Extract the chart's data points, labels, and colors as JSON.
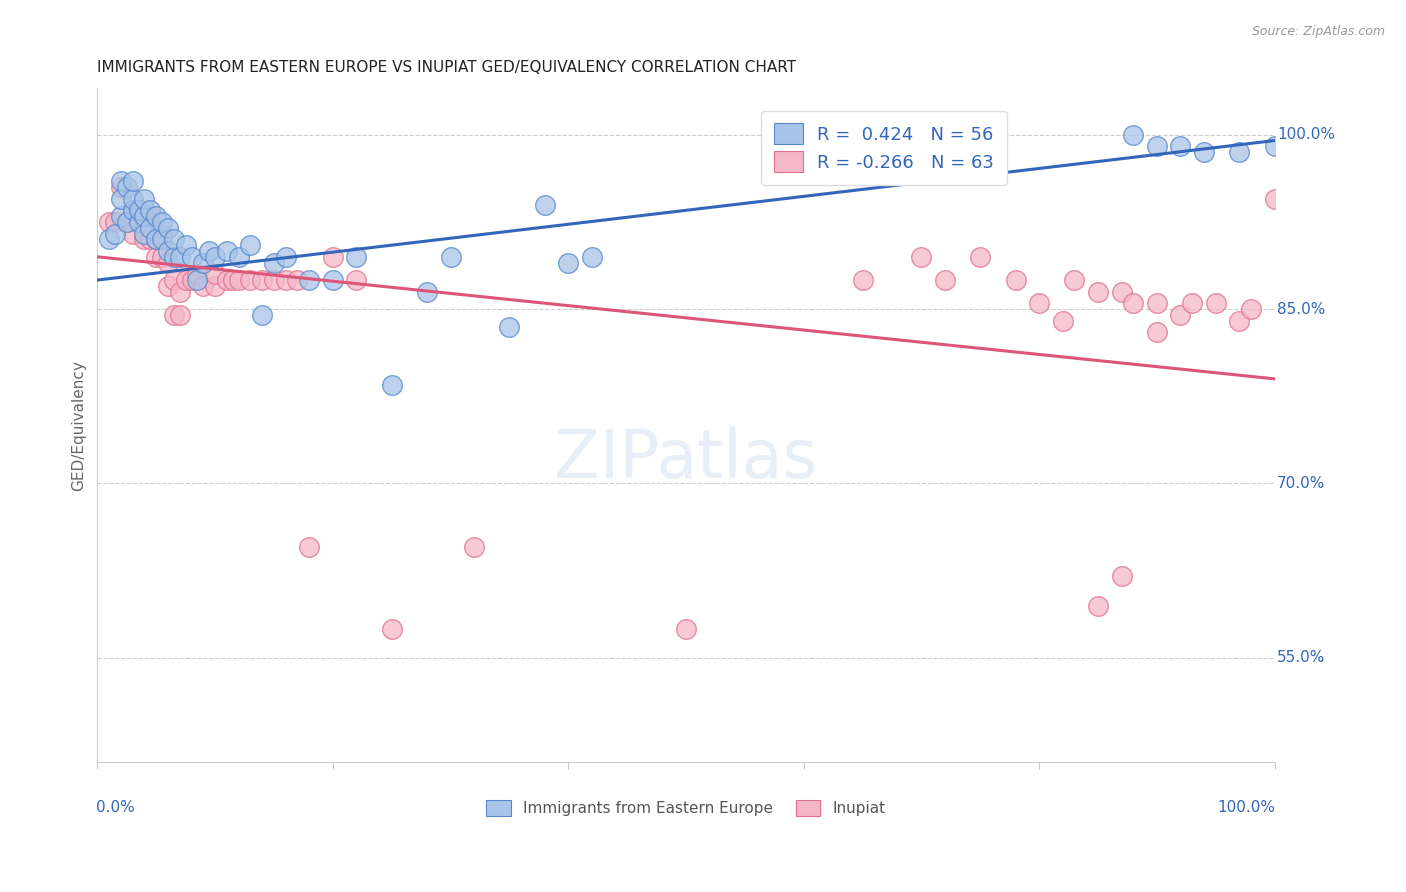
{
  "title": "IMMIGRANTS FROM EASTERN EUROPE VS INUPIAT GED/EQUIVALENCY CORRELATION CHART",
  "source": "Source: ZipAtlas.com",
  "ylabel": "GED/Equivalency",
  "legend_blue_r": "R =  0.424",
  "legend_blue_n": "N = 56",
  "legend_pink_r": "R = -0.266",
  "legend_pink_n": "N = 63",
  "legend_blue_label": "Immigrants from Eastern Europe",
  "legend_pink_label": "Inupiat",
  "blue_color": "#a8c4e8",
  "pink_color": "#f4b8c8",
  "blue_edge_color": "#5588cc",
  "pink_edge_color": "#e07090",
  "blue_line_color": "#3366bb",
  "pink_line_color": "#dd5577",
  "text_color": "#3366bb",
  "blue_scatter_x": [
    0.01,
    0.015,
    0.02,
    0.02,
    0.02,
    0.025,
    0.025,
    0.03,
    0.03,
    0.03,
    0.035,
    0.035,
    0.04,
    0.04,
    0.04,
    0.045,
    0.045,
    0.05,
    0.05,
    0.055,
    0.055,
    0.06,
    0.06,
    0.065,
    0.065,
    0.07,
    0.075,
    0.08,
    0.085,
    0.09,
    0.095,
    0.1,
    0.11,
    0.12,
    0.13,
    0.14,
    0.15,
    0.16,
    0.18,
    0.2,
    0.22,
    0.25,
    0.28,
    0.3,
    0.35,
    0.38,
    0.4,
    0.42,
    0.65,
    0.67,
    0.88,
    0.9,
    0.92,
    0.94,
    0.97,
    1.0
  ],
  "blue_scatter_y": [
    0.91,
    0.915,
    0.93,
    0.945,
    0.96,
    0.925,
    0.955,
    0.935,
    0.945,
    0.96,
    0.925,
    0.935,
    0.915,
    0.93,
    0.945,
    0.92,
    0.935,
    0.91,
    0.93,
    0.91,
    0.925,
    0.9,
    0.92,
    0.895,
    0.91,
    0.895,
    0.905,
    0.895,
    0.875,
    0.89,
    0.9,
    0.895,
    0.9,
    0.895,
    0.905,
    0.845,
    0.89,
    0.895,
    0.875,
    0.875,
    0.895,
    0.785,
    0.865,
    0.895,
    0.835,
    0.94,
    0.89,
    0.895,
    1.0,
    0.97,
    1.0,
    0.99,
    0.99,
    0.985,
    0.985,
    0.99
  ],
  "pink_scatter_x": [
    0.01,
    0.015,
    0.02,
    0.025,
    0.03,
    0.03,
    0.035,
    0.035,
    0.04,
    0.04,
    0.045,
    0.045,
    0.05,
    0.05,
    0.055,
    0.055,
    0.06,
    0.06,
    0.065,
    0.065,
    0.07,
    0.07,
    0.075,
    0.08,
    0.085,
    0.09,
    0.1,
    0.1,
    0.11,
    0.115,
    0.12,
    0.13,
    0.14,
    0.15,
    0.16,
    0.17,
    0.18,
    0.2,
    0.22,
    0.25,
    0.5,
    0.65,
    0.7,
    0.72,
    0.75,
    0.78,
    0.8,
    0.82,
    0.83,
    0.85,
    0.87,
    0.88,
    0.9,
    0.92,
    0.93,
    0.95,
    0.97,
    0.98,
    1.0,
    0.85,
    0.87,
    0.9,
    0.32
  ],
  "pink_scatter_y": [
    0.925,
    0.925,
    0.955,
    0.925,
    0.935,
    0.915,
    0.925,
    0.935,
    0.91,
    0.925,
    0.91,
    0.93,
    0.895,
    0.91,
    0.895,
    0.915,
    0.89,
    0.87,
    0.845,
    0.875,
    0.845,
    0.865,
    0.875,
    0.875,
    0.88,
    0.87,
    0.87,
    0.88,
    0.875,
    0.875,
    0.875,
    0.875,
    0.875,
    0.875,
    0.875,
    0.875,
    0.645,
    0.895,
    0.875,
    0.575,
    0.575,
    0.875,
    0.895,
    0.875,
    0.895,
    0.875,
    0.855,
    0.84,
    0.875,
    0.865,
    0.865,
    0.855,
    0.855,
    0.845,
    0.855,
    0.855,
    0.84,
    0.85,
    0.945,
    0.595,
    0.62,
    0.83,
    0.645
  ],
  "blue_trend_x": [
    0.0,
    1.0
  ],
  "blue_trend_y": [
    0.875,
    0.995
  ],
  "pink_trend_x": [
    0.0,
    1.0
  ],
  "pink_trend_y": [
    0.895,
    0.79
  ],
  "xlim": [
    0.0,
    1.0
  ],
  "ylim": [
    0.46,
    1.04
  ],
  "ytick_positions": [
    0.55,
    0.7,
    0.85,
    1.0
  ],
  "ytick_labels": [
    "55.0%",
    "70.0%",
    "85.0%",
    "100.0%"
  ],
  "background_color": "#ffffff",
  "grid_color": "#cccccc"
}
